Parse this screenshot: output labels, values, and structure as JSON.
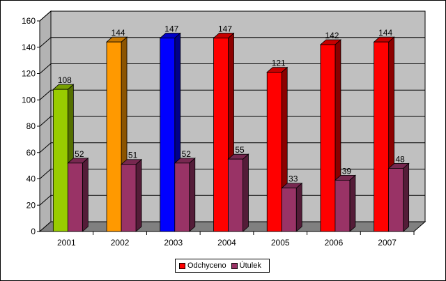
{
  "chart_data": {
    "type": "bar",
    "categories": [
      "2001",
      "2002",
      "2003",
      "2004",
      "2005",
      "2006",
      "2007"
    ],
    "series": [
      {
        "name": "Odchyceno",
        "values": [
          108,
          144,
          147,
          147,
          121,
          142,
          144
        ],
        "color": "#ff0000",
        "point_colors": [
          "#99cc00",
          "#ff9900",
          "#0000ff",
          "#ff0000",
          "#ff0000",
          "#ff0000",
          "#ff0000"
        ]
      },
      {
        "name": "Útulek",
        "values": [
          52,
          51,
          52,
          55,
          33,
          39,
          48
        ],
        "color": "#993366"
      }
    ],
    "data_labels": [
      [
        "108",
        "144",
        "147",
        "147",
        "121",
        "142",
        "144"
      ],
      [
        "52",
        "51",
        "52",
        "55",
        "33",
        "39",
        "48"
      ]
    ],
    "ylim": [
      0,
      160
    ],
    "yticks": [
      0,
      20,
      40,
      60,
      80,
      100,
      120,
      140,
      160
    ],
    "ytick_labels": [
      "0",
      "20",
      "40",
      "60",
      "80",
      "100",
      "120",
      "140",
      "160"
    ],
    "grid": true,
    "legend_position": "bottom-center",
    "wall_color": "#c0c0c0",
    "floor_color": "#808080"
  },
  "legend": {
    "items": [
      {
        "label": "Odchyceno",
        "color": "#ff0000"
      },
      {
        "label": "Útulek",
        "color": "#993366"
      }
    ]
  }
}
